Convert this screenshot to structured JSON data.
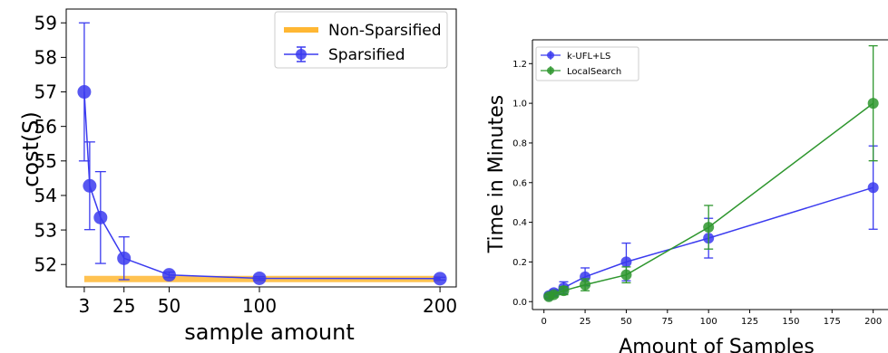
{
  "chart_data": [
    {
      "type": "line",
      "title": "",
      "xlabel": "sample amount",
      "ylabel": "cost(S)",
      "xlim": [
        -7,
        209
      ],
      "ylim": [
        51.35,
        59.4
      ],
      "x_ticks": [
        3,
        25,
        50,
        100,
        200
      ],
      "x_tick_labels": [
        "3",
        "25",
        "50",
        "100",
        "200"
      ],
      "y_ticks": [
        52,
        53,
        54,
        55,
        56,
        57,
        58,
        59
      ],
      "y_tick_labels": [
        "52",
        "53",
        "54",
        "55",
        "56",
        "57",
        "58",
        "59"
      ],
      "grid": false,
      "legend_position": "top-right",
      "series": [
        {
          "name": "Non-Sparsified",
          "kind": "band",
          "color": "#ffb733",
          "x_range": [
            3,
            200
          ],
          "value": 51.58
        },
        {
          "name": "Sparsified",
          "kind": "errorbar-line",
          "color": "#3b3bef",
          "x": [
            3,
            6,
            12,
            25,
            50,
            100,
            200
          ],
          "y": [
            57.0,
            54.28,
            53.36,
            52.18,
            51.7,
            51.6,
            51.59
          ],
          "err": [
            2.0,
            1.27,
            1.33,
            0.62,
            0.08,
            0.05,
            0.04
          ]
        }
      ]
    },
    {
      "type": "line",
      "title": "",
      "xlabel": "Amount of Samples",
      "ylabel": "Time in Minutes",
      "xlim": [
        -7,
        209
      ],
      "ylim": [
        -0.04,
        1.32
      ],
      "x_ticks": [
        0,
        25,
        50,
        75,
        100,
        125,
        150,
        175,
        200
      ],
      "x_tick_labels": [
        "0",
        "25",
        "50",
        "75",
        "100",
        "125",
        "150",
        "175",
        "200"
      ],
      "y_ticks": [
        0.0,
        0.2,
        0.4,
        0.6,
        0.8,
        1.0,
        1.2
      ],
      "y_tick_labels": [
        "0.0",
        "0.2",
        "0.4",
        "0.6",
        "0.8",
        "1.0",
        "1.2"
      ],
      "grid": false,
      "legend_position": "top-left",
      "series": [
        {
          "name": "k-UFL+LS",
          "color": "#3b3bef",
          "x": [
            3,
            6,
            12,
            25,
            50,
            100,
            200
          ],
          "y": [
            0.03,
            0.045,
            0.07,
            0.125,
            0.2,
            0.32,
            0.575
          ],
          "err": [
            0.01,
            0.015,
            0.03,
            0.045,
            0.095,
            0.1,
            0.21
          ]
        },
        {
          "name": "LocalSearch",
          "color": "#2e962e",
          "x": [
            3,
            6,
            12,
            25,
            50,
            100,
            200
          ],
          "y": [
            0.025,
            0.035,
            0.055,
            0.085,
            0.135,
            0.375,
            1.0
          ],
          "err": [
            0.01,
            0.012,
            0.02,
            0.03,
            0.04,
            0.11,
            0.29
          ]
        }
      ]
    }
  ]
}
